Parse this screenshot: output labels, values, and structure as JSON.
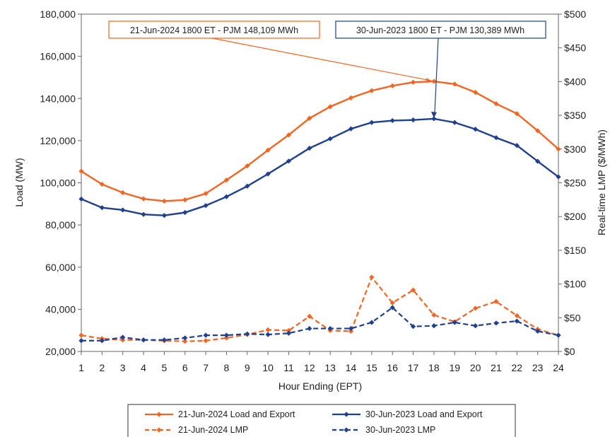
{
  "chart_data": {
    "type": "line",
    "xlabel": "Hour Ending (EPT)",
    "ylabel": "Load (MW)",
    "y2label": "Real-time LMP ($/MWh)",
    "x": [
      1,
      2,
      3,
      4,
      5,
      6,
      7,
      8,
      9,
      10,
      11,
      12,
      13,
      14,
      15,
      16,
      17,
      18,
      19,
      20,
      21,
      22,
      23,
      24
    ],
    "xticks": [
      "1",
      "2",
      "3",
      "4",
      "5",
      "6",
      "7",
      "8",
      "9",
      "10",
      "11",
      "12",
      "13",
      "14",
      "15",
      "16",
      "17",
      "18",
      "19",
      "20",
      "21",
      "22",
      "23",
      "24"
    ],
    "ylim": [
      20000,
      180000
    ],
    "yticks": [
      20000,
      40000,
      60000,
      80000,
      100000,
      120000,
      140000,
      160000,
      180000
    ],
    "ytick_labels": [
      "20,000",
      "40,000",
      "60,000",
      "80,000",
      "100,000",
      "120,000",
      "140,000",
      "160,000",
      "180,000"
    ],
    "y2lim": [
      0,
      500
    ],
    "y2ticks": [
      0,
      50,
      100,
      150,
      200,
      250,
      300,
      350,
      400,
      450,
      500
    ],
    "y2tick_labels": [
      "$0",
      "$50",
      "$100",
      "$150",
      "$200",
      "$250",
      "$300",
      "$350",
      "$400",
      "$450",
      "$500"
    ],
    "grid": false,
    "legend_position": "bottom",
    "series": [
      {
        "name": "21-Jun-2024 Load and Export",
        "axis": "left",
        "style": "solid",
        "color": "#f26522",
        "values": [
          105500,
          99300,
          95300,
          92400,
          91300,
          91900,
          94900,
          101300,
          108000,
          115500,
          122700,
          130600,
          136100,
          140300,
          143700,
          146000,
          147700,
          148109,
          146800,
          142900,
          137500,
          132800,
          124700,
          116000
        ]
      },
      {
        "name": "30-Jun-2023 Load and Export",
        "axis": "left",
        "style": "solid",
        "color": "#1f3f8f",
        "values": [
          92300,
          88200,
          87100,
          85000,
          84500,
          85900,
          89200,
          93400,
          98400,
          104200,
          110300,
          116400,
          120900,
          125600,
          128600,
          129500,
          129800,
          130389,
          128600,
          125400,
          121400,
          117700,
          110200,
          102800
        ]
      },
      {
        "name": "21-Jun-2024 LMP",
        "axis": "right",
        "style": "dashed",
        "color": "#f26522",
        "values": [
          24,
          19,
          17,
          17,
          16,
          15,
          16,
          20,
          25,
          32,
          31,
          52,
          31,
          30,
          110,
          72,
          91,
          54,
          44,
          64,
          74,
          53,
          33,
          24
        ]
      },
      {
        "name": "30-Jun-2023 LMP",
        "axis": "right",
        "style": "dashed",
        "color": "#1f3f8f",
        "values": [
          16,
          16,
          21,
          17,
          17,
          20,
          24,
          24,
          26,
          25,
          27,
          34,
          34,
          34,
          43,
          65,
          37,
          38,
          43,
          38,
          42,
          45,
          30,
          24
        ]
      }
    ],
    "annotations": [
      {
        "text": "21-Jun-2024 1800 ET - PJM 148,109 MWh",
        "x": 18,
        "y": 148109,
        "color": "#f26522"
      },
      {
        "text": "30-Jun-2023 1800 ET - PJM 130,389 MWh",
        "x": 18,
        "y": 130389,
        "color": "#1f3f8f"
      }
    ]
  }
}
